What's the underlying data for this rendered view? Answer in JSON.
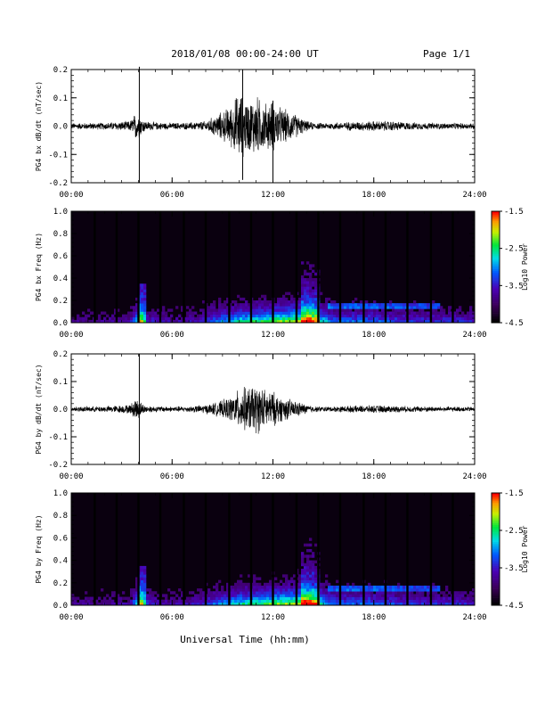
{
  "header": {
    "title": "2018/01/08  00:00-24:00 UT",
    "page": "Page 1/1"
  },
  "footer": {
    "xlabel": "Universal Time (hh:mm)"
  },
  "chart_data": [
    {
      "type": "line",
      "ylabel": "PG4 bx dB/dt (nT/sec)",
      "xlim": [
        0,
        24
      ],
      "ylim": [
        -0.2,
        0.2
      ],
      "yticks": [
        "-0.2",
        "-0.1",
        "0.0",
        "0.1",
        "0.2"
      ],
      "xticks": [
        "00:00",
        "06:00",
        "12:00",
        "18:00",
        "24:00"
      ],
      "envelope": {
        "x": [
          0,
          2,
          3.5,
          3.9,
          4.1,
          4.4,
          5,
          6,
          7,
          8,
          8.8,
          9.5,
          10,
          10.5,
          11,
          11.5,
          12,
          12.5,
          13,
          13.5,
          14,
          14.5,
          15,
          16,
          17,
          18,
          19,
          20,
          22,
          24
        ],
        "amplitude": [
          0.012,
          0.014,
          0.02,
          0.06,
          0.04,
          0.02,
          0.015,
          0.013,
          0.014,
          0.02,
          0.05,
          0.08,
          0.14,
          0.1,
          0.12,
          0.09,
          0.1,
          0.07,
          0.06,
          0.04,
          0.02,
          0.013,
          0.012,
          0.015,
          0.018,
          0.02,
          0.02,
          0.015,
          0.012,
          0.012
        ]
      },
      "spikes": [
        {
          "x": 4.05,
          "min": -0.2,
          "max": 0.21
        },
        {
          "x": 10.2,
          "min": -0.19,
          "max": 0.2
        },
        {
          "x": 12.0,
          "min": -0.2,
          "max": 0.09
        }
      ]
    },
    {
      "type": "heatmap",
      "ylabel": "PG4 bx Freq (Hz)",
      "colorbar_label": "Log10 Power",
      "xlim": [
        0,
        24
      ],
      "ylim": [
        0,
        1
      ],
      "clim": [
        -4.5,
        -1.5
      ],
      "cticks": [
        "-1.5",
        "-2.5",
        "-3.5",
        "-4.5"
      ],
      "yticks": [
        "0.0",
        "0.2",
        "0.4",
        "0.6",
        "0.8",
        "1.0"
      ],
      "xticks": [
        "00:00",
        "06:00",
        "12:00",
        "18:00",
        "24:00"
      ],
      "gap_lines_hours": [
        1.4,
        2.7,
        4.0,
        5.3,
        6.7,
        8.0,
        9.4,
        10.7,
        12.0,
        13.4,
        14.7,
        16.0,
        17.4,
        18.7,
        20.0,
        21.4,
        22.7
      ],
      "features": "broadband power below 0.2 Hz rising 08:00-15:00; band near 0.15 Hz after 15:30; burst to 0.6 Hz near 14:00"
    },
    {
      "type": "line",
      "ylabel": "PG4 by dB/dt (nT/sec)",
      "xlim": [
        0,
        24
      ],
      "ylim": [
        -0.2,
        0.2
      ],
      "yticks": [
        "-0.2",
        "-0.1",
        "0.0",
        "0.1",
        "0.2"
      ],
      "xticks": [
        "00:00",
        "06:00",
        "12:00",
        "18:00",
        "24:00"
      ],
      "envelope": {
        "x": [
          0,
          2,
          3.5,
          3.9,
          4.1,
          4.4,
          5,
          6,
          7,
          8,
          8.8,
          9.5,
          10,
          10.5,
          11,
          11.5,
          12,
          12.5,
          13,
          13.5,
          14,
          14.5,
          15,
          16,
          17,
          18,
          19,
          20,
          22,
          24
        ],
        "amplitude": [
          0.01,
          0.012,
          0.018,
          0.05,
          0.03,
          0.015,
          0.012,
          0.011,
          0.012,
          0.018,
          0.03,
          0.05,
          0.08,
          0.09,
          0.1,
          0.08,
          0.07,
          0.05,
          0.04,
          0.03,
          0.018,
          0.012,
          0.01,
          0.012,
          0.014,
          0.015,
          0.014,
          0.012,
          0.01,
          0.01
        ]
      },
      "spikes": [
        {
          "x": 4.05,
          "min": -0.2,
          "max": 0.2
        }
      ]
    },
    {
      "type": "heatmap",
      "ylabel": "PG4 by Freq (Hz)",
      "colorbar_label": "Log10 Power",
      "xlim": [
        0,
        24
      ],
      "ylim": [
        0,
        1
      ],
      "clim": [
        -4.5,
        -1.5
      ],
      "cticks": [
        "-1.5",
        "-2.5",
        "-3.5",
        "-4.5"
      ],
      "yticks": [
        "0.0",
        "0.2",
        "0.4",
        "0.6",
        "0.8",
        "1.0"
      ],
      "xticks": [
        "00:00",
        "06:00",
        "12:00",
        "18:00",
        "24:00"
      ],
      "gap_lines_hours": [
        1.4,
        2.7,
        4.0,
        5.3,
        6.7,
        8.0,
        9.4,
        10.7,
        12.0,
        13.4,
        14.7,
        16.0,
        17.4,
        18.7,
        20.0,
        21.4,
        22.7
      ],
      "features": "broadband power below 0.2 Hz rising 08:00-15:00; band near 0.15 Hz after 15:30; burst to 0.6 Hz near 14:00"
    }
  ]
}
